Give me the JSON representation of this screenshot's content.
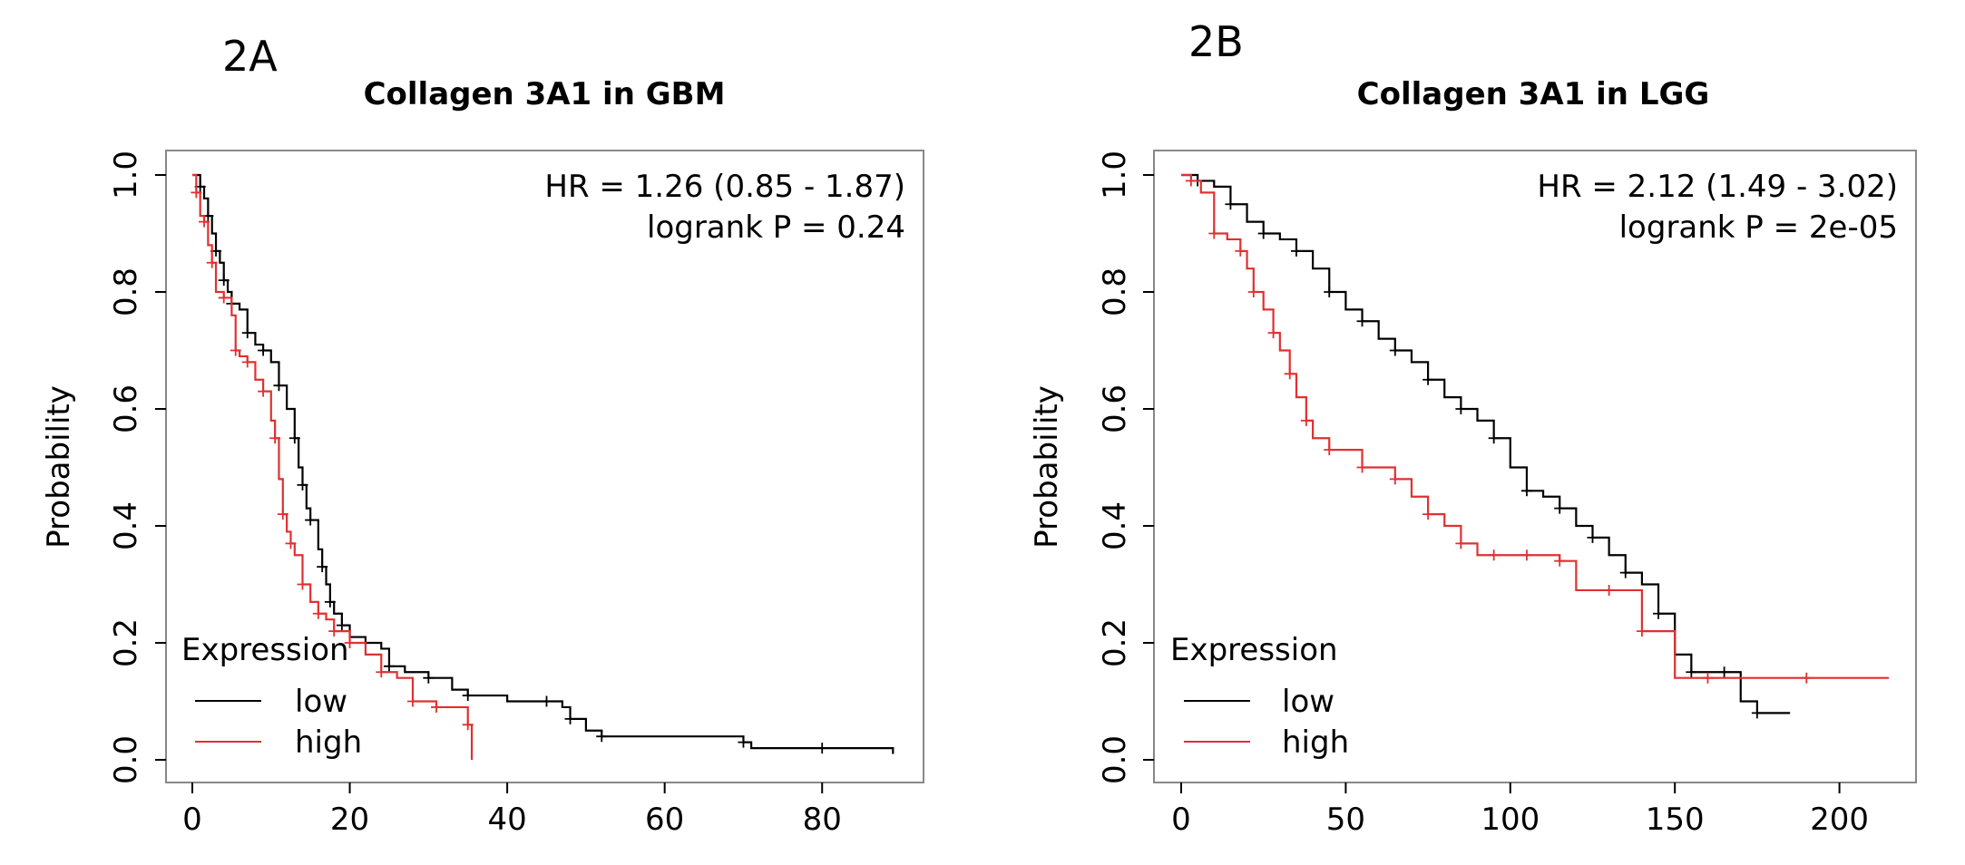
{
  "chart_data": [
    {
      "panel_label": "2A",
      "type": "line",
      "title": "Collagen 3A1 in GBM",
      "ylabel": "Probability",
      "xlabel": "",
      "xlim": [
        0,
        90
      ],
      "ylim": [
        0,
        1
      ],
      "x_ticks": [
        "0",
        "20",
        "40",
        "60",
        "80"
      ],
      "y_ticks": [
        "0.0",
        "0.2",
        "0.4",
        "0.6",
        "0.8",
        "1.0"
      ],
      "grid": false,
      "annotation_lines": [
        "HR = 1.26 (0.85 - 1.87)",
        "logrank P = 0.24"
      ],
      "legend_title": "Expression",
      "legend_position": "bottom-left",
      "series": [
        {
          "name": "low",
          "color": "#000000",
          "x": [
            0,
            1,
            1.5,
            2,
            2.5,
            3,
            3.5,
            4,
            4.5,
            5,
            6,
            7,
            8,
            9,
            10,
            11,
            12,
            13,
            13.5,
            14,
            14.5,
            15,
            16,
            16.5,
            17,
            17.5,
            18,
            19,
            20,
            22,
            24,
            25,
            27,
            30,
            33,
            35,
            40,
            45,
            47,
            48,
            50,
            52,
            60,
            70,
            71,
            80,
            89
          ],
          "y": [
            1.0,
            0.98,
            0.96,
            0.93,
            0.9,
            0.87,
            0.85,
            0.82,
            0.8,
            0.78,
            0.77,
            0.73,
            0.71,
            0.7,
            0.68,
            0.64,
            0.6,
            0.55,
            0.5,
            0.47,
            0.43,
            0.41,
            0.36,
            0.33,
            0.3,
            0.27,
            0.25,
            0.23,
            0.21,
            0.2,
            0.19,
            0.16,
            0.15,
            0.14,
            0.12,
            0.11,
            0.1,
            0.1,
            0.09,
            0.07,
            0.05,
            0.04,
            0.04,
            0.03,
            0.02,
            0.02,
            0.01
          ]
        },
        {
          "name": "high",
          "color": "#e03030",
          "x": [
            0,
            0.5,
            1,
            1.5,
            2,
            2.5,
            3,
            4,
            5,
            5.5,
            6,
            7,
            8,
            9,
            10,
            10.5,
            11,
            11.5,
            12,
            12.5,
            13,
            14,
            15,
            16,
            17,
            18,
            19,
            20,
            22,
            24,
            26,
            28,
            30,
            31,
            33,
            35,
            35.5
          ],
          "y": [
            1.0,
            0.97,
            0.93,
            0.92,
            0.88,
            0.85,
            0.8,
            0.79,
            0.76,
            0.7,
            0.69,
            0.68,
            0.65,
            0.63,
            0.58,
            0.55,
            0.48,
            0.42,
            0.39,
            0.37,
            0.35,
            0.3,
            0.27,
            0.25,
            0.24,
            0.22,
            0.22,
            0.2,
            0.18,
            0.15,
            0.14,
            0.1,
            0.1,
            0.09,
            0.09,
            0.06,
            0.0
          ]
        }
      ]
    },
    {
      "panel_label": "2B",
      "type": "line",
      "title": "Collagen 3A1 in LGG",
      "ylabel": "Probability",
      "xlabel": "",
      "xlim": [
        0,
        215
      ],
      "ylim": [
        0,
        1
      ],
      "x_ticks": [
        "0",
        "50",
        "100",
        "150",
        "200"
      ],
      "y_ticks": [
        "0.0",
        "0.2",
        "0.4",
        "0.6",
        "0.8",
        "1.0"
      ],
      "grid": false,
      "annotation_lines": [
        "HR = 2.12 (1.49 - 3.02)",
        "logrank P = 2e-05"
      ],
      "legend_title": "Expression",
      "legend_position": "bottom-left",
      "series": [
        {
          "name": "low",
          "color": "#000000",
          "x": [
            0,
            5,
            10,
            15,
            20,
            25,
            30,
            35,
            40,
            45,
            50,
            55,
            60,
            65,
            70,
            75,
            80,
            85,
            90,
            95,
            100,
            105,
            110,
            115,
            120,
            125,
            130,
            135,
            140,
            145,
            150,
            155,
            160,
            165,
            170,
            175,
            185
          ],
          "y": [
            1.0,
            0.99,
            0.98,
            0.95,
            0.92,
            0.9,
            0.89,
            0.87,
            0.84,
            0.8,
            0.77,
            0.75,
            0.72,
            0.7,
            0.68,
            0.65,
            0.62,
            0.6,
            0.58,
            0.55,
            0.5,
            0.46,
            0.45,
            0.43,
            0.4,
            0.38,
            0.35,
            0.32,
            0.3,
            0.25,
            0.18,
            0.15,
            0.15,
            0.15,
            0.1,
            0.08,
            0.08
          ]
        },
        {
          "name": "high",
          "color": "#e03030",
          "x": [
            0,
            3,
            6,
            10,
            14,
            18,
            20,
            22,
            25,
            28,
            30,
            33,
            35,
            38,
            40,
            45,
            50,
            55,
            60,
            65,
            70,
            75,
            80,
            85,
            90,
            95,
            100,
            105,
            110,
            115,
            120,
            130,
            135,
            140,
            150,
            160,
            170,
            190,
            215
          ],
          "y": [
            1.0,
            0.99,
            0.97,
            0.9,
            0.89,
            0.87,
            0.84,
            0.8,
            0.77,
            0.73,
            0.7,
            0.66,
            0.62,
            0.58,
            0.55,
            0.53,
            0.53,
            0.5,
            0.5,
            0.48,
            0.45,
            0.42,
            0.4,
            0.37,
            0.35,
            0.35,
            0.35,
            0.35,
            0.35,
            0.34,
            0.29,
            0.29,
            0.29,
            0.22,
            0.14,
            0.14,
            0.14,
            0.14,
            0.14
          ]
        }
      ]
    }
  ]
}
